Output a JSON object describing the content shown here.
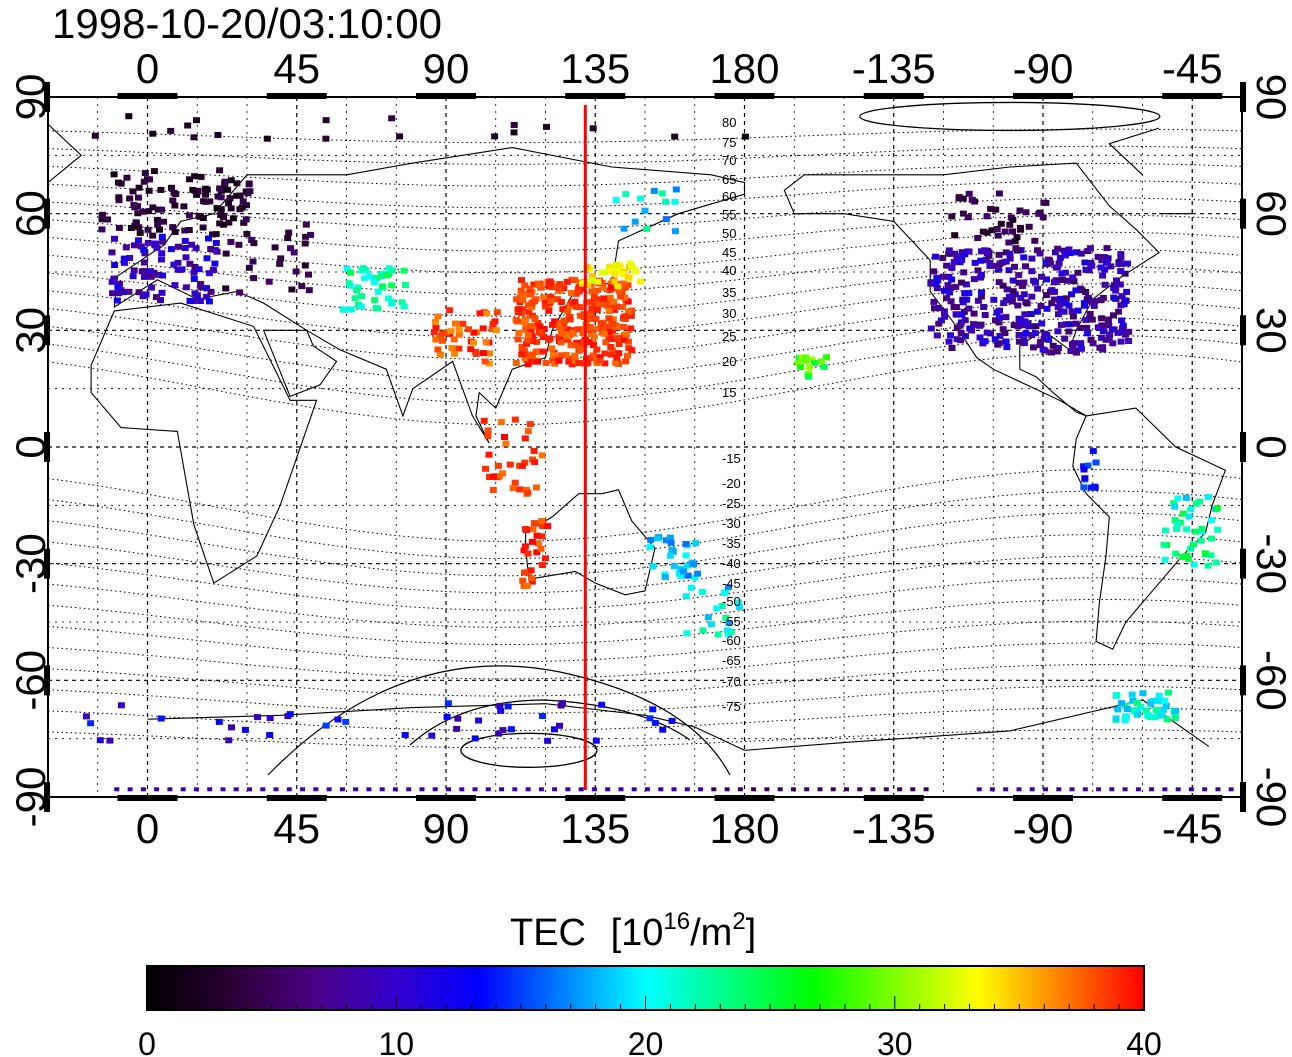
{
  "map": {
    "timestamp": "1998-10-20/03:10:00",
    "top_lon_labels": [
      "0",
      "45",
      "90",
      "135",
      "180",
      "-135",
      "-90",
      "-45"
    ],
    "bottom_lon_labels": [
      "0",
      "45",
      "90",
      "135",
      "180",
      "-135",
      "-90",
      "-45"
    ],
    "left_lat_labels": [
      "90",
      "60",
      "30",
      "0",
      "-30",
      "-60",
      "-90"
    ],
    "right_lat_labels": [
      "90",
      "60",
      "30",
      "0",
      "-30",
      "-60",
      "-90"
    ],
    "contour_labels": [
      "80",
      "75",
      "70",
      "65",
      "60",
      "55",
      "50",
      "45",
      "40",
      "35",
      "30",
      "25",
      "20",
      "15",
      "-15",
      "-20",
      "-25",
      "-30",
      "-35",
      "-40",
      "-45",
      "-50",
      "-55",
      "-60",
      "-65",
      "-70",
      "-75"
    ],
    "meridian_marker_lon": 132,
    "meridian_marker_color": "#ff0000"
  },
  "colorbar": {
    "title": "TEC",
    "unit_prefix": "[10",
    "unit_exp": "16",
    "unit_mid": "/m",
    "unit_exp2": "2",
    "unit_suffix": "]",
    "tick_labels": [
      "0",
      "10",
      "20",
      "30",
      "40"
    ],
    "min": 0,
    "max": 40,
    "stops": [
      "#000000",
      "#2a0033",
      "#4a0082",
      "#3300cc",
      "#0000ff",
      "#0080ff",
      "#00ffff",
      "#00ff80",
      "#00ff00",
      "#80ff00",
      "#ffff00",
      "#ff8000",
      "#ff0000"
    ]
  }
}
